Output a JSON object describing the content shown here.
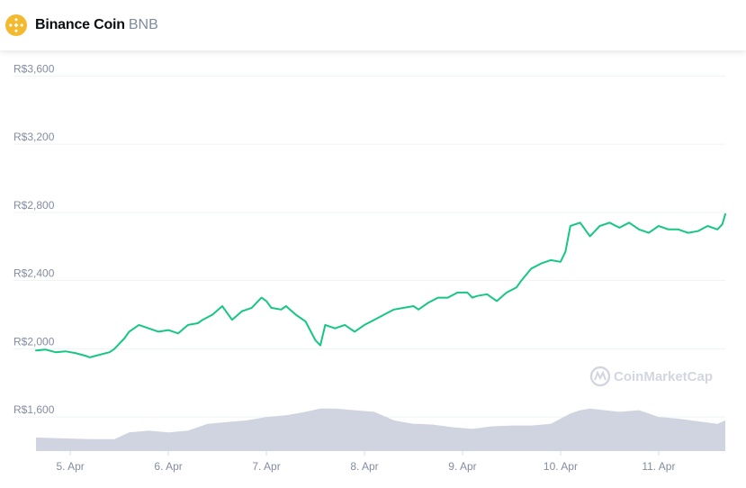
{
  "header": {
    "name": "Binance Coin",
    "symbol": "BNB",
    "logo_icon": "bnb-logo-icon",
    "logo_color": "#f3ba2f"
  },
  "watermark": {
    "text": "CoinMarketCap",
    "icon": "coinmarketcap-logo-icon"
  },
  "colors": {
    "price_line": "#16c784",
    "volume_fill": "#cfd4e0",
    "grid": "#eff2f5",
    "tick_text": "#858ca2"
  },
  "chart_data": {
    "type": "line",
    "title": "",
    "xlabel": "",
    "ylabel": "",
    "ylim": [
      1400,
      3750
    ],
    "grid": true,
    "legend": "none",
    "y_ticks": [
      {
        "value": 3600,
        "label": "R$3,600"
      },
      {
        "value": 3200,
        "label": "R$3,200"
      },
      {
        "value": 2800,
        "label": "R$2,800"
      },
      {
        "value": 2400,
        "label": "R$2,400"
      },
      {
        "value": 2000,
        "label": "R$2,000"
      },
      {
        "value": 1600,
        "label": "R$1,600"
      }
    ],
    "x_ticks": [
      {
        "value": 5,
        "label": "5. Apr"
      },
      {
        "value": 6,
        "label": "6. Apr"
      },
      {
        "value": 7,
        "label": "7. Apr"
      },
      {
        "value": 8,
        "label": "8. Apr"
      },
      {
        "value": 9,
        "label": "9. Apr"
      },
      {
        "value": 10,
        "label": "10. Apr"
      },
      {
        "value": 11,
        "label": "11. Apr"
      }
    ],
    "xlim": [
      4.65,
      11.68
    ],
    "series": [
      {
        "kind": "price",
        "x": [
          4.65,
          4.75,
          4.85,
          4.95,
          5.05,
          5.15,
          5.2,
          5.3,
          5.4,
          5.45,
          5.55,
          5.6,
          5.7,
          5.8,
          5.9,
          6.0,
          6.1,
          6.2,
          6.3,
          6.35,
          6.45,
          6.55,
          6.65,
          6.75,
          6.85,
          6.95,
          7.0,
          7.05,
          7.15,
          7.2,
          7.3,
          7.4,
          7.5,
          7.55,
          7.6,
          7.7,
          7.8,
          7.9,
          8.0,
          8.1,
          8.2,
          8.3,
          8.4,
          8.5,
          8.55,
          8.65,
          8.75,
          8.85,
          8.95,
          9.05,
          9.1,
          9.15,
          9.25,
          9.35,
          9.45,
          9.55,
          9.6,
          9.7,
          9.8,
          9.9,
          10.0,
          10.05,
          10.1,
          10.2,
          10.3,
          10.4,
          10.5,
          10.6,
          10.7,
          10.8,
          10.9,
          11.0,
          11.1,
          11.2,
          11.3,
          11.4,
          11.5,
          11.6,
          11.65,
          11.68
        ],
        "y": [
          1990,
          1995,
          1980,
          1985,
          1975,
          1960,
          1950,
          1965,
          1980,
          2000,
          2060,
          2100,
          2140,
          2120,
          2100,
          2110,
          2090,
          2140,
          2150,
          2170,
          2200,
          2250,
          2170,
          2220,
          2240,
          2300,
          2280,
          2240,
          2230,
          2250,
          2200,
          2160,
          2050,
          2020,
          2140,
          2120,
          2140,
          2100,
          2140,
          2170,
          2200,
          2230,
          2240,
          2250,
          2230,
          2270,
          2300,
          2300,
          2330,
          2330,
          2300,
          2310,
          2320,
          2280,
          2330,
          2360,
          2400,
          2470,
          2500,
          2520,
          2510,
          2570,
          2720,
          2740,
          2660,
          2720,
          2740,
          2710,
          2740,
          2700,
          2680,
          2720,
          2700,
          2700,
          2680,
          2690,
          2720,
          2700,
          2730,
          2790
        ]
      },
      {
        "kind": "volume",
        "x": [
          4.65,
          4.9,
          5.2,
          5.45,
          5.6,
          5.8,
          6.0,
          6.2,
          6.4,
          6.6,
          6.8,
          7.0,
          7.2,
          7.4,
          7.55,
          7.7,
          7.9,
          8.1,
          8.3,
          8.5,
          8.55,
          8.7,
          8.9,
          9.1,
          9.3,
          9.5,
          9.7,
          9.9,
          10.0,
          10.1,
          10.2,
          10.3,
          10.45,
          10.6,
          10.8,
          10.9,
          11.0,
          11.2,
          11.4,
          11.6,
          11.68
        ],
        "y": [
          1480,
          1475,
          1470,
          1470,
          1510,
          1520,
          1510,
          1520,
          1560,
          1570,
          1580,
          1600,
          1610,
          1630,
          1650,
          1650,
          1640,
          1630,
          1580,
          1560,
          1560,
          1555,
          1540,
          1530,
          1545,
          1550,
          1550,
          1560,
          1590,
          1620,
          1640,
          1650,
          1640,
          1630,
          1640,
          1620,
          1600,
          1590,
          1575,
          1560,
          1580
        ]
      }
    ]
  }
}
